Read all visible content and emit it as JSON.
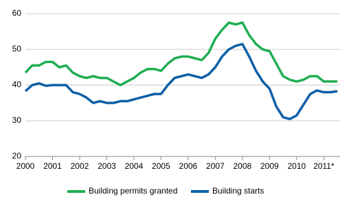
{
  "chart_data": {
    "type": "line",
    "x": [
      2000,
      2000.25,
      2000.5,
      2000.75,
      2001,
      2001.25,
      2001.5,
      2001.75,
      2002,
      2002.25,
      2002.5,
      2002.75,
      2003,
      2003.25,
      2003.5,
      2003.75,
      2004,
      2004.25,
      2004.5,
      2004.75,
      2005,
      2005.25,
      2005.5,
      2005.75,
      2006,
      2006.25,
      2006.5,
      2006.75,
      2007,
      2007.25,
      2007.5,
      2007.75,
      2008,
      2008.25,
      2008.5,
      2008.75,
      2009,
      2009.25,
      2009.5,
      2009.75,
      2010,
      2010.25,
      2010.5,
      2010.75,
      2011,
      2011.25,
      2011.5
    ],
    "series": [
      {
        "name": "Building permits granted",
        "color": "#1fae52",
        "values": [
          43.5,
          45.5,
          45.5,
          46.5,
          46.5,
          45,
          45.5,
          43.5,
          42.5,
          42,
          42.5,
          42,
          42,
          41,
          40,
          41,
          42,
          43.5,
          44.5,
          44.5,
          44,
          46,
          47.5,
          48,
          48,
          47.5,
          47,
          49,
          53,
          55.5,
          57.5,
          57,
          57.5,
          54,
          51.5,
          50,
          49.5,
          46,
          42.5,
          41.5,
          41,
          41.5,
          42.5,
          42.5,
          41,
          41,
          41
        ]
      },
      {
        "name": "Building starts",
        "color": "#0d5fa6",
        "values": [
          38.3,
          40,
          40.5,
          39.8,
          40,
          40,
          40,
          38,
          37.5,
          36.5,
          35,
          35.5,
          35,
          35,
          35.5,
          35.5,
          36,
          36.5,
          37,
          37.5,
          37.5,
          40,
          42,
          42.5,
          43,
          42.5,
          42,
          43,
          45,
          48,
          50,
          51,
          51.5,
          48,
          44,
          41,
          39,
          34,
          31,
          30.5,
          31.5,
          34.5,
          37.5,
          38.5,
          38,
          38,
          38.3
        ]
      }
    ],
    "xlim": [
      2000,
      2011.6
    ],
    "xticks": [
      2000,
      2001,
      2002,
      2003,
      2004,
      2005,
      2006,
      2007,
      2008,
      2009,
      2010,
      {
        "value": 2011,
        "label": "2011*"
      }
    ],
    "ylim": [
      20,
      60
    ],
    "yticks": [
      20,
      30,
      40,
      50,
      60
    ],
    "grid": true
  }
}
